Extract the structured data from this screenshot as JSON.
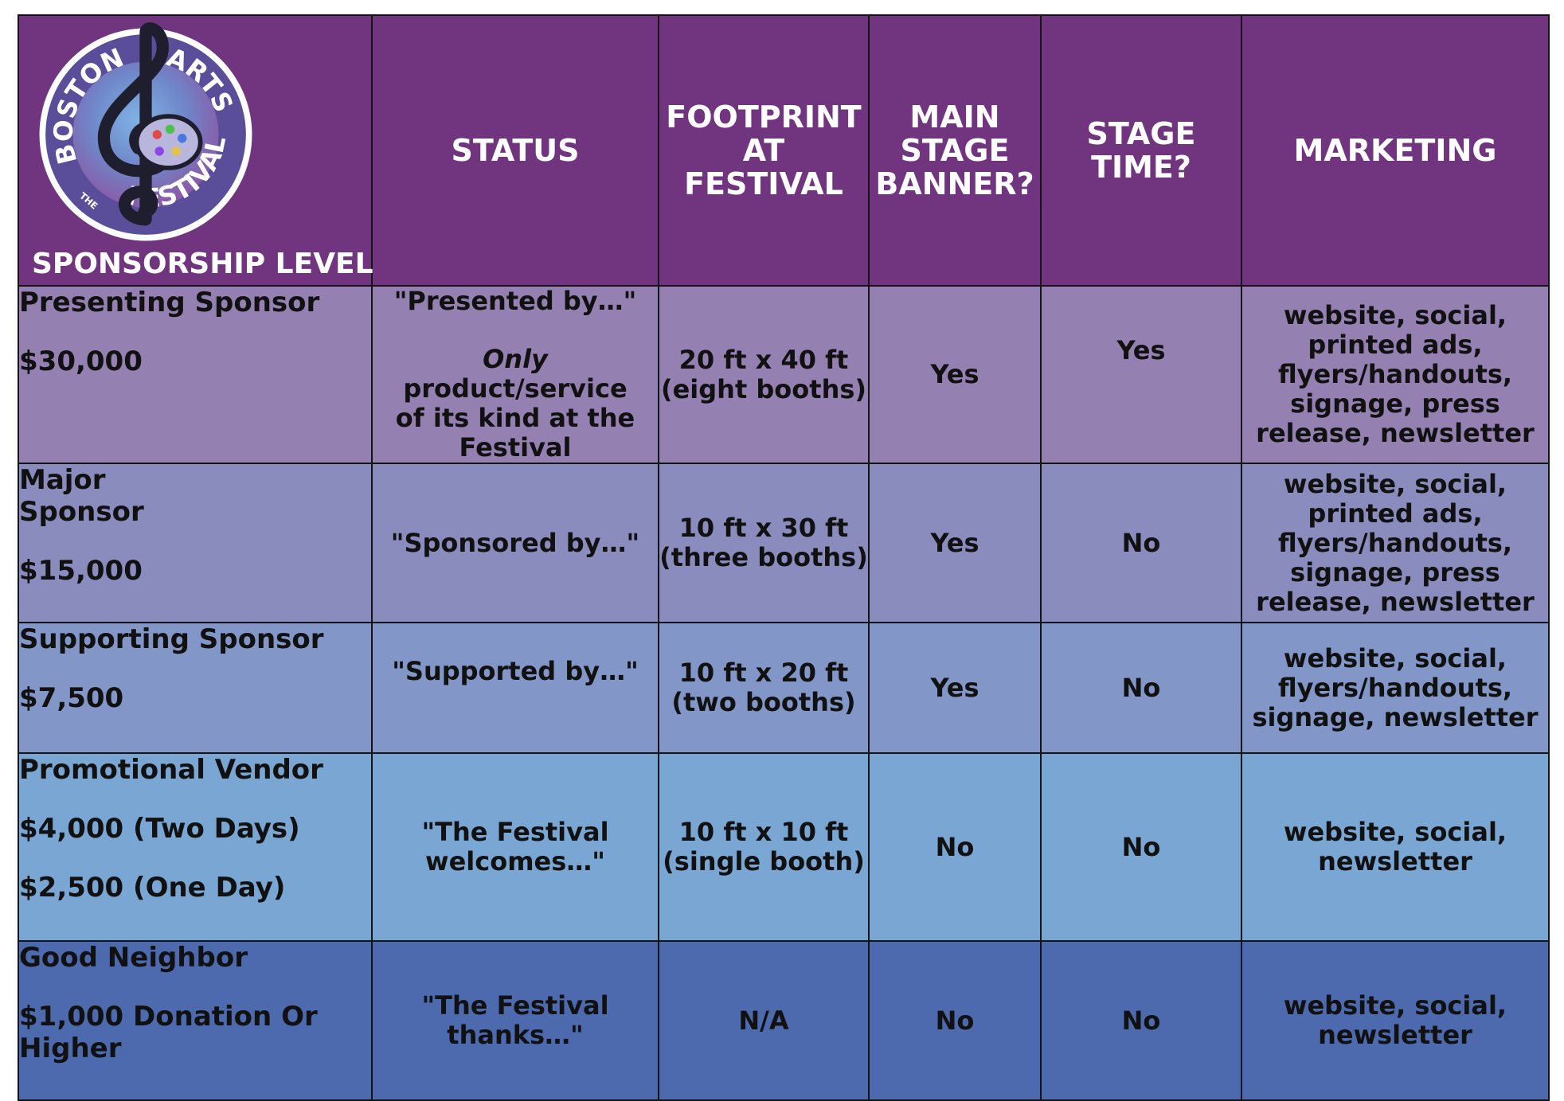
{
  "logo": {
    "word_top_left": "BOSTON",
    "word_top_right": "ARTS",
    "word_bottom": "FESTIVAL",
    "word_small": "THE"
  },
  "header": {
    "level": "SPONSORSHIP LEVEL",
    "status": "STATUS",
    "footprint": "FOOTPRINT\nAT\nFESTIVAL",
    "banner": "MAIN\nSTAGE\nBANNER?",
    "stage_time": "STAGE\nTIME?",
    "marketing": "MARKETING"
  },
  "rows": [
    {
      "name": "Presenting Sponsor",
      "price": "$30,000",
      "status": "\"Presented by…\"",
      "status_em": "Only",
      "status_rest": "product/service\nof its kind at the\nFestival",
      "footprint": "20 ft x 40 ft\n(eight booths)",
      "banner": "Yes",
      "stage": "Yes",
      "marketing": "website, social,\nprinted ads,\nflyers/handouts,\nsignage, press\nrelease, newsletter"
    },
    {
      "name": "Major\nSponsor",
      "price": "$15,000",
      "status": "\"Sponsored by…\"",
      "footprint": "10 ft x 30 ft\n(three booths)",
      "banner": "Yes",
      "stage": "No",
      "marketing": "website, social,\nprinted ads,\nflyers/handouts,\nsignage, press\nrelease, newsletter"
    },
    {
      "name": "Supporting Sponsor",
      "price": "$7,500",
      "status": "\"Supported by…\"",
      "footprint": "10 ft x 20 ft\n(two booths)",
      "banner": "Yes",
      "stage": "No",
      "marketing": "website, social,\nflyers/handouts,\nsignage, newsletter"
    },
    {
      "name": "Promotional Vendor",
      "price": "$4,000 (Two Days)",
      "price2": "$2,500 (One Day)",
      "status": "\"The Festival\nwelcomes…\"",
      "footprint": "10 ft x 10 ft\n(single booth)",
      "banner": "No",
      "stage": "No",
      "marketing": "website, social,\nnewsletter"
    },
    {
      "name": "Good Neighbor",
      "price": "$1,000 Donation Or\nHigher",
      "status": "\"The Festival\nthanks…\"",
      "footprint": "N/A",
      "banner": "No",
      "stage": "No",
      "marketing": "website, social,\nnewsletter"
    }
  ]
}
